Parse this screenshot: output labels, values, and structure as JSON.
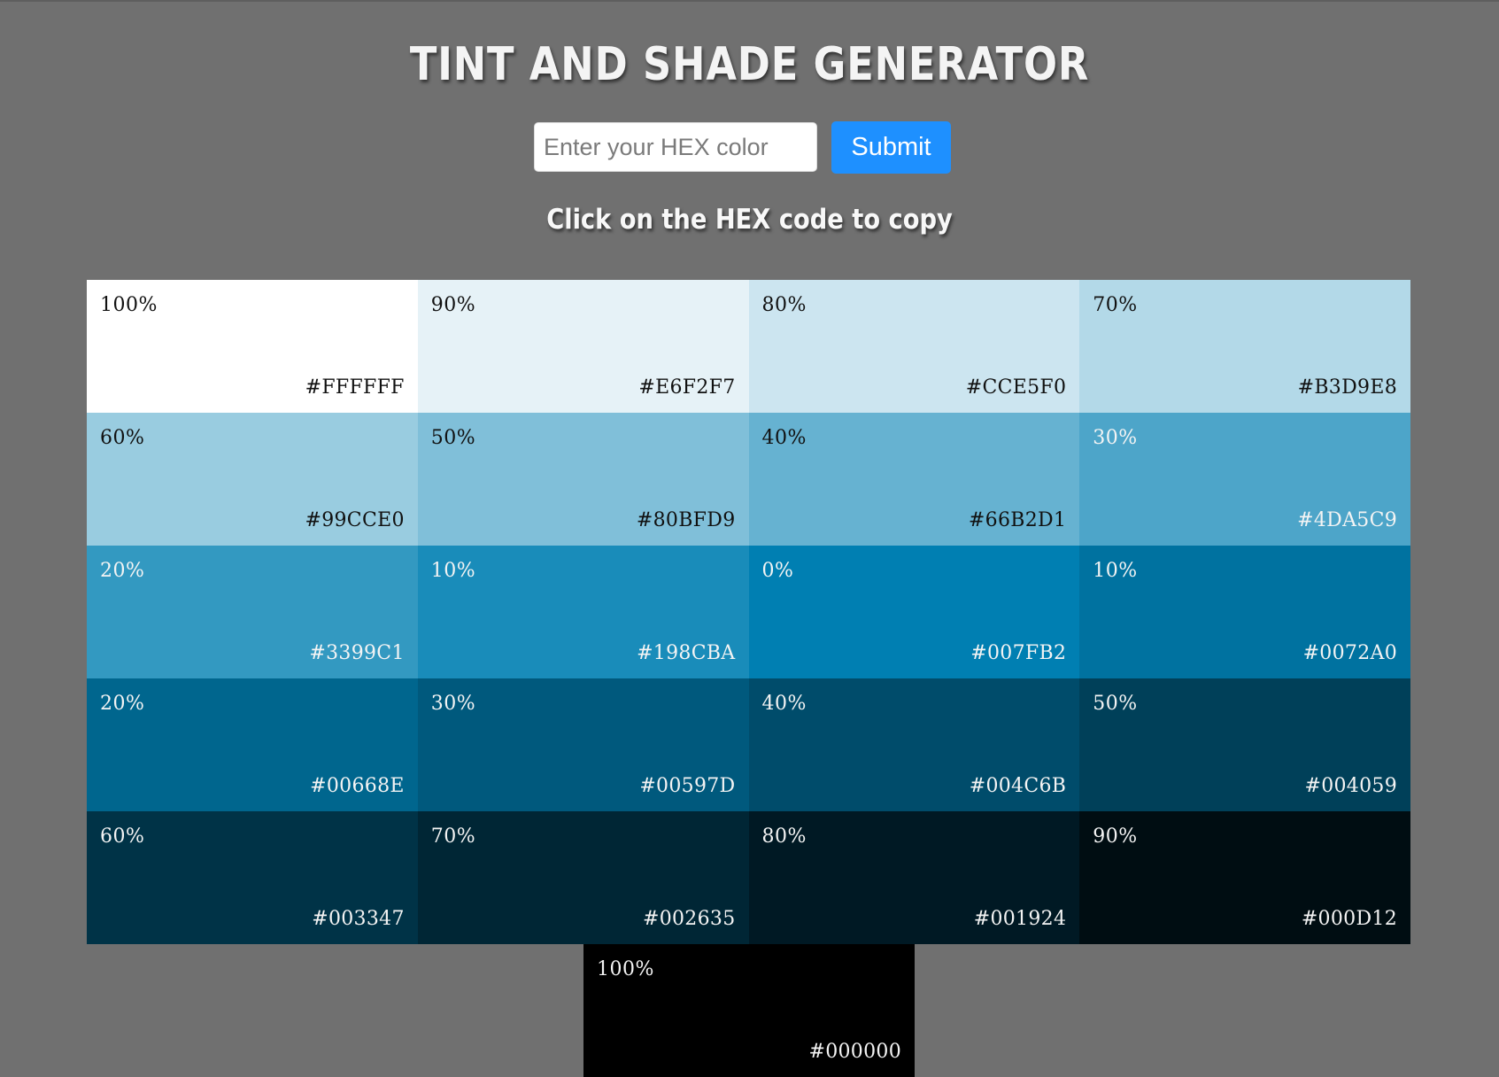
{
  "header": {
    "title": "TINT AND SHADE GENERATOR",
    "hint": "Click on the HEX code to copy"
  },
  "form": {
    "placeholder": "Enter your HEX color",
    "submit_label": "Submit",
    "submit_color": "#1e90ff"
  },
  "page": {
    "background": "#707070"
  },
  "swatches": [
    {
      "percent": "100%",
      "hex": "#FFFFFF"
    },
    {
      "percent": "90%",
      "hex": "#E6F2F7"
    },
    {
      "percent": "80%",
      "hex": "#CCE5F0"
    },
    {
      "percent": "70%",
      "hex": "#B3D9E8"
    },
    {
      "percent": "60%",
      "hex": "#99CCE0"
    },
    {
      "percent": "50%",
      "hex": "#80BFD9"
    },
    {
      "percent": "40%",
      "hex": "#66B2D1"
    },
    {
      "percent": "30%",
      "hex": "#4DA5C9"
    },
    {
      "percent": "20%",
      "hex": "#3399C1"
    },
    {
      "percent": "10%",
      "hex": "#198CBA"
    },
    {
      "percent": "0%",
      "hex": "#007FB2"
    },
    {
      "percent": "10%",
      "hex": "#0072A0"
    },
    {
      "percent": "20%",
      "hex": "#00668E"
    },
    {
      "percent": "30%",
      "hex": "#00597D"
    },
    {
      "percent": "40%",
      "hex": "#004C6B"
    },
    {
      "percent": "50%",
      "hex": "#004059"
    },
    {
      "percent": "60%",
      "hex": "#003347"
    },
    {
      "percent": "70%",
      "hex": "#002635"
    },
    {
      "percent": "80%",
      "hex": "#001924"
    },
    {
      "percent": "90%",
      "hex": "#000D12"
    },
    {
      "percent": "100%",
      "hex": "#000000"
    }
  ]
}
